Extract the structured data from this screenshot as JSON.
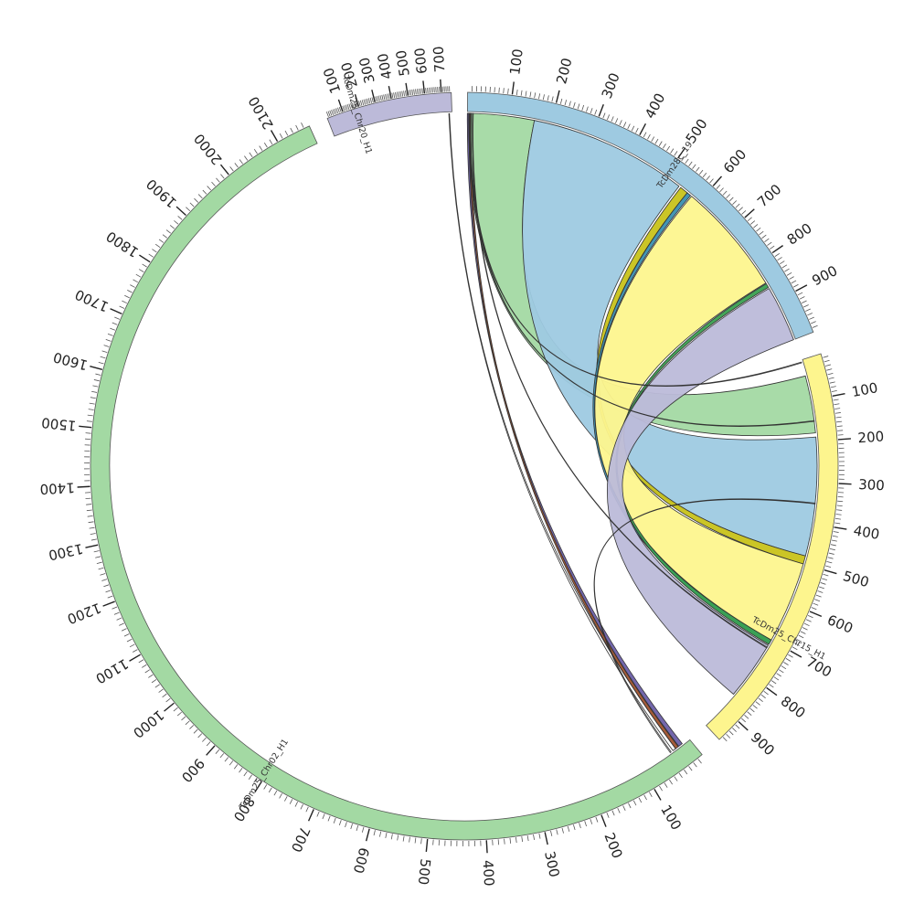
{
  "chart_data": {
    "type": "chord",
    "tick_unit": 1,
    "chromosomes": [
      {
        "id": "c28",
        "label": "TcDm28c_19",
        "length": 1000,
        "color": "#9ecae1",
        "ticks": [
          100,
          200,
          300,
          400,
          500,
          600,
          700,
          800,
          900
        ]
      },
      {
        "id": "c15",
        "label": "TcDm25_Chr15_H1",
        "length": 960,
        "color": "#fdf58e",
        "ticks": [
          100,
          200,
          300,
          400,
          500,
          600,
          700,
          800,
          900
        ]
      },
      {
        "id": "c02",
        "label": "TcDm25_Chr02_H1",
        "length": 2160,
        "color": "#a3d9a3",
        "ticks": [
          100,
          200,
          300,
          400,
          500,
          600,
          700,
          800,
          900,
          1000,
          1100,
          1200,
          1300,
          1400,
          1500,
          1600,
          1700,
          1800,
          1900,
          2000,
          2100
        ]
      },
      {
        "id": "c20",
        "label": "TcDm25_Chr20_H1",
        "length": 760,
        "color": "#bcbad9",
        "ticks": [
          100,
          200,
          300,
          400,
          500,
          600,
          700
        ]
      }
    ],
    "links": [
      {
        "source": "c28",
        "s_start": 0,
        "s_end": 160,
        "target": "c15",
        "t_start": 40,
        "t_end": 180,
        "color": "#a3d9a3"
      },
      {
        "source": "c28",
        "s_start": 160,
        "s_end": 540,
        "target": "c15",
        "t_start": 190,
        "t_end": 480,
        "color": "#9ecae1"
      },
      {
        "source": "c28",
        "s_start": 545,
        "s_end": 565,
        "target": "c15",
        "t_start": 480,
        "t_end": 500,
        "color": "#c8c21a"
      },
      {
        "source": "c28",
        "s_start": 565,
        "s_end": 575,
        "target": "c15",
        "t_start": 700,
        "t_end": 712,
        "color": "#3a8fb0"
      },
      {
        "source": "c28",
        "s_start": 578,
        "s_end": 850,
        "target": "c15",
        "t_start": 500,
        "t_end": 700,
        "color": "#fdf58e"
      },
      {
        "source": "c28",
        "s_start": 852,
        "s_end": 862,
        "target": "c15",
        "t_start": 700,
        "t_end": 712,
        "color": "#3aa050"
      },
      {
        "source": "c28",
        "s_start": 865,
        "s_end": 1000,
        "target": "c15",
        "t_start": 715,
        "t_end": 860,
        "color": "#bcbad9"
      },
      {
        "source": "c28",
        "s_start": 0,
        "s_end": 4,
        "target": "c02",
        "t_start": 15,
        "t_end": 23,
        "color": "#6b5fa8"
      },
      {
        "source": "c28",
        "s_start": 5,
        "s_end": 9,
        "target": "c02",
        "t_start": 24,
        "t_end": 30,
        "color": "#a0522d"
      },
      {
        "source": "c20",
        "s_start": 740,
        "s_end": 744,
        "target": "c02",
        "t_start": 30,
        "t_end": 36,
        "color": "#ffffff"
      },
      {
        "source": "c28",
        "s_start": 12,
        "s_end": 14,
        "target": "c15",
        "t_start": 720,
        "t_end": 722,
        "color": "#ffffff"
      },
      {
        "source": "c28",
        "s_start": 3,
        "s_end": 5,
        "target": "c15",
        "t_start": 150,
        "t_end": 152,
        "color": "#ffffff"
      },
      {
        "source": "c28",
        "s_start": 6,
        "s_end": 8,
        "target": "c15",
        "t_start": 5,
        "t_end": 7,
        "color": "#ffffff"
      },
      {
        "source": "c15",
        "s_start": 350,
        "s_end": 352,
        "target": "c02",
        "t_start": 40,
        "t_end": 42,
        "color": "#ffffff"
      }
    ]
  }
}
